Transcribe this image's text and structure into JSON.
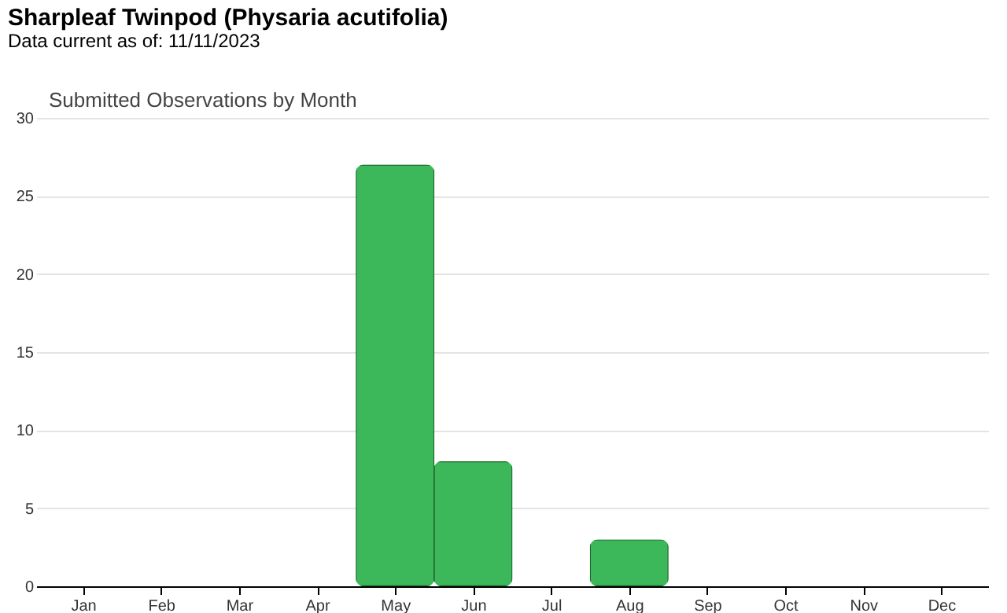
{
  "chart_data": {
    "type": "bar",
    "title": "Sharpleaf Twinpod   (Physaria acutifolia)",
    "subtitle": "Data current as of: 11/11/2023",
    "annotations": [
      "Submitted Observations by Month"
    ],
    "categories": [
      "Jan",
      "Feb",
      "Mar",
      "Apr",
      "May",
      "Jun",
      "Jul",
      "Aug",
      "Sep",
      "Oct",
      "Nov",
      "Dec"
    ],
    "values": [
      0,
      0,
      0,
      0,
      27,
      8,
      0,
      3,
      0,
      0,
      0,
      0
    ],
    "color": "#3cb85a",
    "ylim": [
      0,
      30
    ],
    "yticks": [
      0,
      5,
      10,
      15,
      20,
      25,
      30
    ],
    "grid": "y"
  }
}
